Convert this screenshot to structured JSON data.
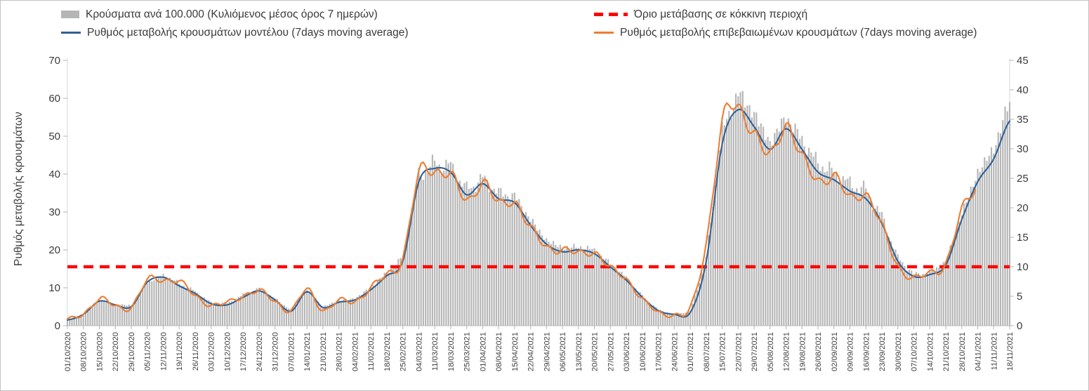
{
  "legend": {
    "items": [
      {
        "label": "Κρούσματα ανά 100.000 (Κυλιόμενος μέσος όρος 7 ημερών)",
        "swatch": "bar",
        "color": "#b5b5b5"
      },
      {
        "label": "Όριο μετάβασης σε κόκκινη περιοχή",
        "swatch": "dash",
        "color": "#ff0000"
      },
      {
        "label": "Ρυθμός μεταβολής κρουσμάτων μοντέλου (7days moving average)",
        "swatch": "line",
        "color": "#2f6096"
      },
      {
        "label": "Ρυθμός μεταβολής επιβεβαιωμένων κρουσμάτων (7days moving average)",
        "swatch": "line",
        "color": "#ed7d31"
      }
    ]
  },
  "chart_data": {
    "type": "combo",
    "days_per_step": 7,
    "left_axis": {
      "title": "Ρυθμός μεταβολής κρουσμάτων",
      "min": 0,
      "max": 70,
      "ticks": [
        0,
        10,
        20,
        30,
        40,
        50,
        60,
        70
      ]
    },
    "right_axis": {
      "min": 0,
      "max": 45,
      "ticks": [
        0,
        5,
        10,
        15,
        20,
        25,
        30,
        35,
        40,
        45
      ]
    },
    "threshold": {
      "label": "Όριο μετάβασης σε κόκκινη περιοχή",
      "axis": "right",
      "value": 10,
      "color": "#ff0000",
      "style": "dashed"
    },
    "x_labels": [
      "01/10/2020",
      "08/10/2020",
      "15/10/2020",
      "22/10/2020",
      "29/10/2020",
      "05/11/2020",
      "12/11/2020",
      "19/11/2020",
      "26/11/2020",
      "03/12/2020",
      "10/12/2020",
      "17/12/2020",
      "24/12/2020",
      "31/12/2020",
      "07/01/2021",
      "14/01/2021",
      "21/01/2021",
      "28/01/2021",
      "04/02/2021",
      "11/02/2021",
      "18/02/2021",
      "25/02/2021",
      "04/03/2021",
      "11/03/2021",
      "18/03/2021",
      "25/03/2021",
      "01/04/2021",
      "08/04/2021",
      "15/04/2021",
      "22/04/2021",
      "29/04/2021",
      "06/05/2021",
      "13/05/2021",
      "20/05/2021",
      "27/05/2021",
      "03/06/2021",
      "10/06/2021",
      "17/06/2021",
      "24/06/2021",
      "01/07/2021",
      "08/07/2021",
      "15/07/2021",
      "22/07/2021",
      "29/07/2021",
      "05/08/2021",
      "12/08/2021",
      "19/08/2021",
      "26/08/2021",
      "02/09/2021",
      "09/09/2021",
      "16/09/2021",
      "23/09/2021",
      "30/09/2021",
      "07/10/2021",
      "14/10/2021",
      "21/10/2021",
      "28/10/2021",
      "04/11/2021",
      "11/11/2021",
      "18/11/2021"
    ],
    "series": [
      {
        "name": "Κρούσματα ανά 100.000 (Κυλιόμενος μέσος όρος 7 ημερών)",
        "type": "bar",
        "axis": "right",
        "color": "#b5b5b5",
        "weekly_values": [
          1.0,
          2.0,
          4.3,
          3.6,
          3.5,
          7.3,
          8.6,
          7.2,
          5.8,
          3.9,
          3.8,
          5.2,
          6.2,
          4.6,
          2.7,
          6.0,
          3.2,
          4.3,
          4.6,
          6.5,
          9.0,
          11.5,
          25.5,
          27.5,
          27.0,
          23.0,
          25.0,
          22.5,
          22.0,
          18.0,
          14.5,
          13.2,
          13.4,
          12.8,
          10.4,
          8.1,
          5.0,
          2.7,
          2.0,
          2.4,
          11.5,
          33.0,
          39.5,
          36.0,
          31.0,
          35.5,
          31.5,
          27.5,
          26.0,
          24.0,
          23.0,
          18.5,
          11.5,
          8.7,
          9.0,
          10.8,
          19.0,
          26.0,
          30.0,
          38.0
        ]
      },
      {
        "name": "Ρυθμός μεταβολής κρουσμάτων μοντέλου (7days moving average)",
        "type": "line",
        "axis": "left",
        "color": "#2f6096",
        "texture": "smooth",
        "weekly_values": [
          1.5,
          3.0,
          6.5,
          5.5,
          5.0,
          11.5,
          12.8,
          10.5,
          8.5,
          5.8,
          5.5,
          7.5,
          9.2,
          6.8,
          3.8,
          9.0,
          4.8,
          6.2,
          6.8,
          9.5,
          13.2,
          17.0,
          38.0,
          41.5,
          40.5,
          34.5,
          37.5,
          33.5,
          32.5,
          26.5,
          21.5,
          19.5,
          20.0,
          19.0,
          15.5,
          12.0,
          7.5,
          4.0,
          3.0,
          3.5,
          17.0,
          48.0,
          57.0,
          52.5,
          46.5,
          52.0,
          46.5,
          40.5,
          38.5,
          35.5,
          33.5,
          27.0,
          17.0,
          13.0,
          13.5,
          16.0,
          28.0,
          38.0,
          44.0,
          54.0
        ]
      },
      {
        "name": "Ρυθμός μεταβολής επιβεβαιωμένων κρουσμάτων (7days moving average)",
        "type": "line",
        "axis": "left",
        "color": "#ed7d31",
        "texture": "noisy",
        "weekly_values": [
          1.5,
          3.2,
          7.0,
          5.2,
          5.0,
          11.8,
          12.2,
          11.5,
          8.0,
          5.5,
          6.0,
          8.0,
          9.0,
          6.5,
          4.0,
          9.5,
          4.2,
          6.5,
          6.5,
          10.0,
          13.5,
          18.0,
          39.5,
          41.0,
          39.5,
          33.0,
          38.0,
          32.0,
          33.0,
          25.5,
          21.0,
          20.0,
          19.0,
          19.5,
          15.0,
          12.5,
          7.0,
          3.5,
          3.0,
          4.5,
          22.0,
          53.0,
          57.5,
          51.0,
          44.5,
          53.5,
          44.0,
          38.5,
          39.5,
          33.5,
          35.0,
          26.0,
          16.0,
          12.5,
          14.0,
          16.5,
          30.0,
          37.0,
          null,
          null
        ]
      }
    ]
  }
}
